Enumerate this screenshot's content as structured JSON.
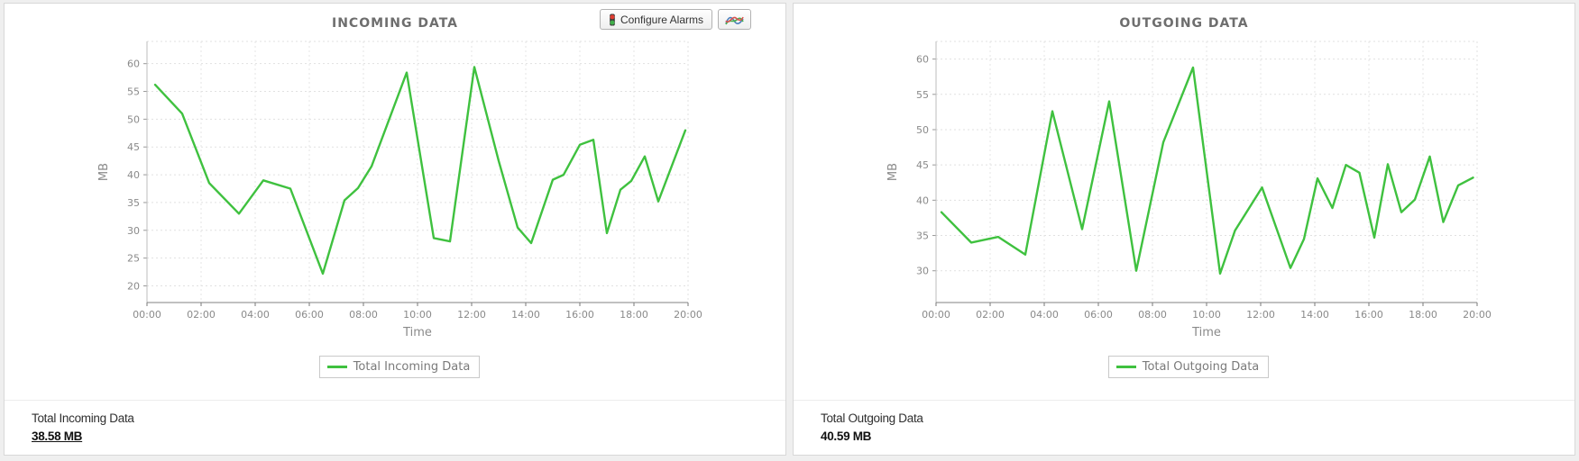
{
  "page": {
    "background": "#efefef",
    "panel_background": "#ffffff",
    "accent_green": "#3fc13f"
  },
  "toolbar": {
    "configure_alarms_label": "Configure Alarms",
    "icons": {
      "configure_alarms": "traffic-light-icon",
      "chart_button": "line-chart-icon"
    }
  },
  "panels": [
    {
      "title": "INCOMING DATA",
      "summary_label": "Total Incoming Data",
      "summary_value": "38.58 MB",
      "summary_underlined": true
    },
    {
      "title": "OUTGOING DATA",
      "summary_label": "Total Outgoing Data",
      "summary_value": "40.59 MB",
      "summary_underlined": false
    }
  ],
  "chart_data": [
    {
      "type": "line",
      "title": "INCOMING DATA",
      "xlabel": "Time",
      "ylabel": "MB",
      "x_tick_labels": [
        "00:00",
        "02:00",
        "04:00",
        "06:00",
        "08:00",
        "10:00",
        "12:00",
        "14:00",
        "16:00",
        "18:00",
        "20:00"
      ],
      "x_tick_hours": [
        0,
        2,
        4,
        6,
        8,
        10,
        12,
        14,
        16,
        18,
        20
      ],
      "y_ticks": [
        20,
        25,
        30,
        35,
        40,
        45,
        50,
        55,
        60
      ],
      "xlim": [
        0,
        20
      ],
      "ylim": [
        17,
        64
      ],
      "grid": "dashed",
      "legend_position": "bottom",
      "series": [
        {
          "name": "Total Incoming Data",
          "color": "#3fc13f",
          "points": [
            [
              0.3,
              56.2
            ],
            [
              1.3,
              51
            ],
            [
              2.3,
              38.5
            ],
            [
              3.4,
              33
            ],
            [
              4.3,
              39
            ],
            [
              5.3,
              37.5
            ],
            [
              6.5,
              22.2
            ],
            [
              7.3,
              35.4
            ],
            [
              7.8,
              37.6
            ],
            [
              8.3,
              41.5
            ],
            [
              9.6,
              58.4
            ],
            [
              10.6,
              28.6
            ],
            [
              11.2,
              28
            ],
            [
              12.1,
              59.4
            ],
            [
              13.0,
              42.5
            ],
            [
              13.7,
              30.5
            ],
            [
              14.2,
              27.7
            ],
            [
              15.0,
              39.1
            ],
            [
              15.4,
              40
            ],
            [
              16.0,
              45.4
            ],
            [
              16.5,
              46.3
            ],
            [
              17.0,
              29.5
            ],
            [
              17.5,
              37.3
            ],
            [
              17.9,
              38.9
            ],
            [
              18.4,
              43.3
            ],
            [
              18.9,
              35.2
            ],
            [
              19.9,
              48
            ]
          ]
        }
      ]
    },
    {
      "type": "line",
      "title": "OUTGOING DATA",
      "xlabel": "Time",
      "ylabel": "MB",
      "x_tick_labels": [
        "00:00",
        "02:00",
        "04:00",
        "06:00",
        "08:00",
        "10:00",
        "12:00",
        "14:00",
        "16:00",
        "18:00",
        "20:00"
      ],
      "x_tick_hours": [
        0,
        2,
        4,
        6,
        8,
        10,
        12,
        14,
        16,
        18,
        20
      ],
      "y_ticks": [
        30,
        35,
        40,
        45,
        50,
        55,
        60
      ],
      "xlim": [
        0,
        20
      ],
      "ylim": [
        25.5,
        62.5
      ],
      "grid": "dashed",
      "legend_position": "bottom",
      "series": [
        {
          "name": "Total Outgoing Data",
          "color": "#3fc13f",
          "points": [
            [
              0.2,
              38.3
            ],
            [
              1.3,
              34
            ],
            [
              2.3,
              34.8
            ],
            [
              3.3,
              32.3
            ],
            [
              4.3,
              52.6
            ],
            [
              5.4,
              35.9
            ],
            [
              6.4,
              54
            ],
            [
              7.4,
              30
            ],
            [
              8.4,
              48.2
            ],
            [
              9.5,
              58.8
            ],
            [
              10.5,
              29.6
            ],
            [
              11.05,
              35.7
            ],
            [
              12.05,
              41.8
            ],
            [
              13.1,
              30.4
            ],
            [
              13.6,
              34.5
            ],
            [
              14.1,
              43.1
            ],
            [
              14.65,
              38.9
            ],
            [
              15.15,
              45
            ],
            [
              15.65,
              43.9
            ],
            [
              16.2,
              34.7
            ],
            [
              16.7,
              45.1
            ],
            [
              17.2,
              38.3
            ],
            [
              17.7,
              40.1
            ],
            [
              18.25,
              46.2
            ],
            [
              18.75,
              36.9
            ],
            [
              19.3,
              42.1
            ],
            [
              19.85,
              43.2
            ]
          ]
        }
      ]
    }
  ]
}
